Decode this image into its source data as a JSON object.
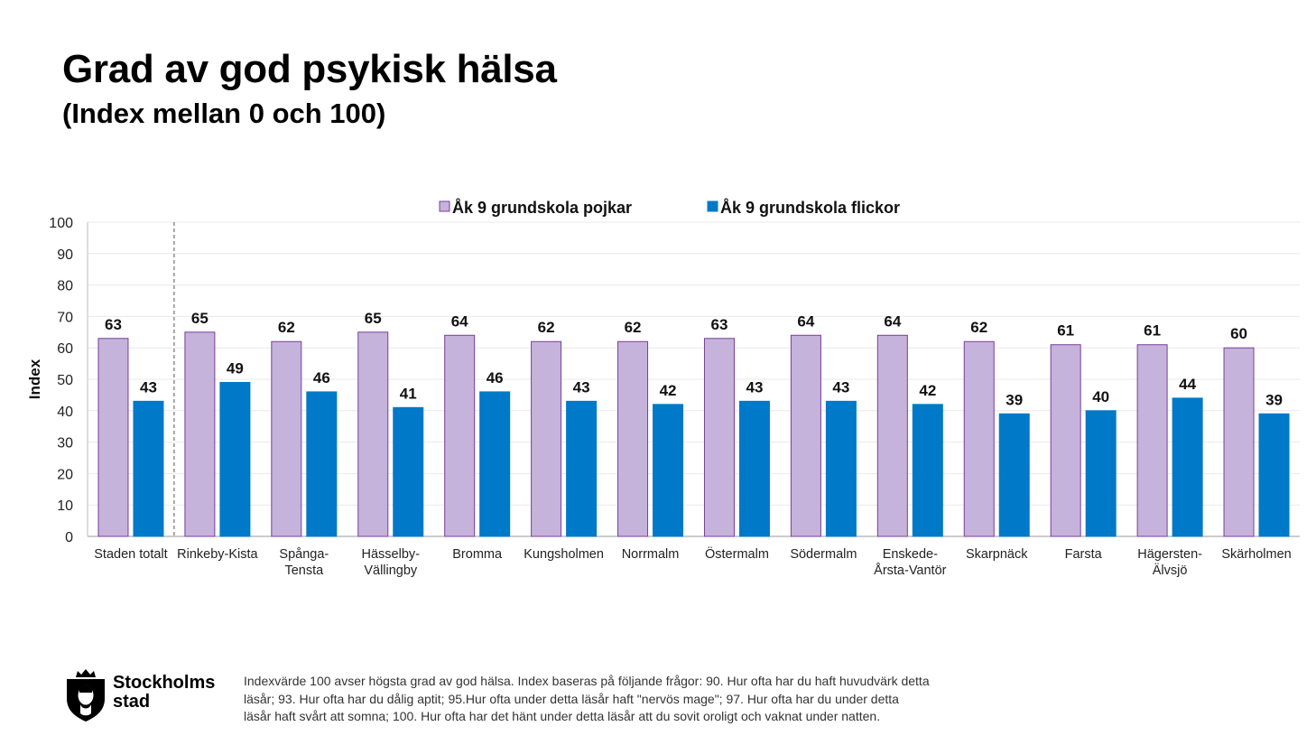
{
  "slide": {
    "title": "Grad av god psykisk hälsa",
    "subtitle": "(Index mellan 0 och 100)"
  },
  "chart_data": {
    "type": "bar",
    "categories": [
      [
        "Staden totalt"
      ],
      [
        "Rinkeby-Kista"
      ],
      [
        "Spånga-",
        "Tensta"
      ],
      [
        "Hässelby-",
        "Vällingby"
      ],
      [
        "Bromma"
      ],
      [
        "Kungsholmen"
      ],
      [
        "Norrmalm"
      ],
      [
        "Östermalm"
      ],
      [
        "Södermalm"
      ],
      [
        "Enskede-",
        "Årsta-Vantör"
      ],
      [
        "Skarpnäck"
      ],
      [
        "Farsta"
      ],
      [
        "Hägersten-",
        "Älvsjö"
      ],
      [
        "Skärholmen"
      ]
    ],
    "series": [
      {
        "name": "Åk 9 grundskola pojkar",
        "color": "#c5b3dc",
        "edge": "#7a3e98",
        "values": [
          63,
          65,
          62,
          65,
          64,
          62,
          62,
          63,
          64,
          64,
          62,
          61,
          61,
          60
        ],
        "labels": [
          "63",
          "65",
          "62",
          "65",
          "64",
          "62",
          "62",
          "63",
          "64",
          "64",
          "62",
          "61",
          "61",
          "60"
        ]
      },
      {
        "name": "Åk 9 grundskola flickor",
        "color": "#0079c8",
        "edge": "#0079c8",
        "values": [
          43,
          49,
          46,
          41,
          46,
          43,
          42,
          43,
          43,
          42,
          39,
          40,
          44,
          39
        ],
        "labels": [
          "43",
          "49",
          "46",
          "41",
          "46",
          "43",
          "42",
          "43",
          "43",
          "42",
          "39",
          "40",
          "44",
          "39"
        ]
      }
    ],
    "ylabel": "Index",
    "ylim": [
      0,
      100
    ],
    "yticks": [
      "0",
      "10",
      "20",
      "30",
      "40",
      "50",
      "60",
      "70",
      "80",
      "90",
      "100"
    ],
    "grid": true,
    "legend": "top-center",
    "separator_after_category": 0
  },
  "logo": {
    "text_line1": "Stockholms",
    "text_line2": "stad"
  },
  "footnote": "Indexvärde 100 avser högsta grad av god hälsa. Index baseras på följande frågor: 90. Hur ofta har du haft huvudvärk detta läsår; 93. Hur ofta har du dålig aptit; 95.Hur ofta under detta läsår haft \"nervös mage\"; 97. Hur ofta har du under detta läsår haft svårt att somna; 100. Hur ofta har det hänt under detta läsår att du sovit oroligt och vaknat under natten."
}
